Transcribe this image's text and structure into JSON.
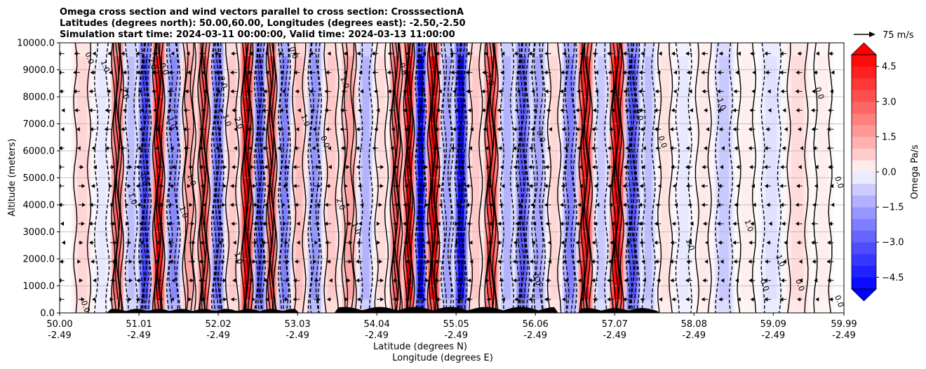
{
  "chart_data": {
    "type": "heatmap",
    "title_lines": [
      "Omega cross section and wind vectors parallel to cross section: CrosssectionA",
      "Latitudes (degrees north): 50.00,60.00, Longitudes (degrees east): -2.50,-2.50",
      "Simulation start time: 2024-03-11 00:00:00, Valid time: 2024-03-13 11:00:00"
    ],
    "ylabel": "Altitude (meters)",
    "xlabel_lines": [
      "Latitude (degrees N)",
      "Longitude (degrees E)"
    ],
    "ylim": [
      0,
      10000
    ],
    "xlim": [
      50.0,
      59.99
    ],
    "yticks": [
      "0.0",
      "1000.0",
      "2000.0",
      "3000.0",
      "4000.0",
      "5000.0",
      "6000.0",
      "7000.0",
      "8000.0",
      "9000.0",
      "10000.0"
    ],
    "xticks": [
      {
        "lat": "50.00",
        "lon": "-2.49"
      },
      {
        "lat": "51.01",
        "lon": "-2.49"
      },
      {
        "lat": "52.02",
        "lon": "-2.49"
      },
      {
        "lat": "53.03",
        "lon": "-2.49"
      },
      {
        "lat": "54.04",
        "lon": "-2.49"
      },
      {
        "lat": "55.05",
        "lon": "-2.49"
      },
      {
        "lat": "56.06",
        "lon": "-2.49"
      },
      {
        "lat": "57.07",
        "lon": "-2.49"
      },
      {
        "lat": "58.08",
        "lon": "-2.49"
      },
      {
        "lat": "59.09",
        "lon": "-2.49"
      },
      {
        "lat": "59.99",
        "lon": "-2.49"
      }
    ],
    "grid": "horizontal",
    "colorbar": {
      "label": "Omega Pa/s",
      "range": [
        -5.0,
        5.0
      ],
      "ticks": [
        "4.5",
        "3.0",
        "1.5",
        "0.0",
        "−1.5",
        "−3.0",
        "−4.5"
      ],
      "tick_values": [
        4.5,
        3.0,
        1.5,
        0.0,
        -1.5,
        -3.0,
        -4.5
      ],
      "extend": "both",
      "levels": 20,
      "negative_color": "#0000ff",
      "positive_color": "#ff0000"
    },
    "quiver_key": {
      "label": "75 m/s"
    },
    "bands": [
      {
        "lat": 50.3,
        "value": 0.6
      },
      {
        "lat": 50.55,
        "value": -0.3
      },
      {
        "lat": 50.75,
        "value": 2.8
      },
      {
        "lat": 50.9,
        "value": -1.0
      },
      {
        "lat": 51.1,
        "value": -3.5
      },
      {
        "lat": 51.25,
        "value": 4.5
      },
      {
        "lat": 51.45,
        "value": -2.0
      },
      {
        "lat": 51.65,
        "value": 1.5
      },
      {
        "lat": 51.85,
        "value": 3.2
      },
      {
        "lat": 52.0,
        "value": -2.8
      },
      {
        "lat": 52.2,
        "value": 0.8
      },
      {
        "lat": 52.4,
        "value": 4.8
      },
      {
        "lat": 52.55,
        "value": -3.2
      },
      {
        "lat": 52.7,
        "value": 3.5
      },
      {
        "lat": 52.85,
        "value": -2.2
      },
      {
        "lat": 53.05,
        "value": 1.0
      },
      {
        "lat": 53.25,
        "value": -1.8
      },
      {
        "lat": 53.45,
        "value": 0.8
      },
      {
        "lat": 53.7,
        "value": 1.5
      },
      {
        "lat": 53.9,
        "value": -1.2
      },
      {
        "lat": 54.1,
        "value": 0.5
      },
      {
        "lat": 54.3,
        "value": 3.0
      },
      {
        "lat": 54.45,
        "value": 5.0
      },
      {
        "lat": 54.6,
        "value": -5.0
      },
      {
        "lat": 54.75,
        "value": 5.0
      },
      {
        "lat": 54.95,
        "value": -1.5
      },
      {
        "lat": 55.1,
        "value": -4.8
      },
      {
        "lat": 55.3,
        "value": 0.8
      },
      {
        "lat": 55.5,
        "value": 3.5
      },
      {
        "lat": 55.7,
        "value": -1.2
      },
      {
        "lat": 55.9,
        "value": -3.0
      },
      {
        "lat": 56.1,
        "value": -1.5
      },
      {
        "lat": 56.3,
        "value": 0.6
      },
      {
        "lat": 56.5,
        "value": -2.2
      },
      {
        "lat": 56.7,
        "value": 4.2
      },
      {
        "lat": 56.9,
        "value": -0.8
      },
      {
        "lat": 57.1,
        "value": 4.8
      },
      {
        "lat": 57.3,
        "value": -3.2
      },
      {
        "lat": 57.5,
        "value": -1.0
      },
      {
        "lat": 57.7,
        "value": 0.4
      },
      {
        "lat": 57.95,
        "value": -0.3
      },
      {
        "lat": 58.2,
        "value": 0.3
      },
      {
        "lat": 58.45,
        "value": -0.8
      },
      {
        "lat": 58.75,
        "value": 0.2
      },
      {
        "lat": 59.05,
        "value": -0.4
      },
      {
        "lat": 59.4,
        "value": 0.5
      },
      {
        "lat": 59.75,
        "value": 0.2
      }
    ],
    "contour_labels": [
      {
        "text": "0.0",
        "lat": 50.35,
        "alt": 9400
      },
      {
        "text": "1.0",
        "lat": 50.55,
        "alt": 9100
      },
      {
        "text": "2.0",
        "lat": 50.8,
        "alt": 8100
      },
      {
        "text": "2.0",
        "lat": 51.15,
        "alt": 9200
      },
      {
        "text": "0.0",
        "lat": 51.3,
        "alt": 9000
      },
      {
        "text": "1.0",
        "lat": 51.4,
        "alt": 7000
      },
      {
        "text": "1.0",
        "lat": 50.9,
        "alt": 4200
      },
      {
        "text": "0.0",
        "lat": 51.05,
        "alt": 4900
      },
      {
        "text": "1.0",
        "lat": 51.55,
        "alt": 3700
      },
      {
        "text": "1.0",
        "lat": 51.65,
        "alt": 4900
      },
      {
        "text": "2.0",
        "lat": 52.05,
        "alt": 8500
      },
      {
        "text": "1.0",
        "lat": 52.1,
        "alt": 7100
      },
      {
        "text": "2.0",
        "lat": 52.25,
        "alt": 7000
      },
      {
        "text": "1.0",
        "lat": 52.25,
        "alt": 2000
      },
      {
        "text": "0.0",
        "lat": 52.95,
        "alt": 9600
      },
      {
        "text": "1.0",
        "lat": 53.1,
        "alt": 7100
      },
      {
        "text": "0.0",
        "lat": 53.35,
        "alt": 6300
      },
      {
        "text": "2.0",
        "lat": 53.55,
        "alt": 4000
      },
      {
        "text": "1.0",
        "lat": 53.75,
        "alt": 3100
      },
      {
        "text": "1.0",
        "lat": 53.6,
        "alt": 8500
      },
      {
        "text": "0.0",
        "lat": 54.35,
        "alt": 9000
      },
      {
        "text": "2.0",
        "lat": 55.45,
        "alt": 8600
      },
      {
        "text": "0.0",
        "lat": 56.1,
        "alt": 6500
      },
      {
        "text": "0.0",
        "lat": 56.05,
        "alt": 1200
      },
      {
        "text": "0.0",
        "lat": 57.35,
        "alt": 7300
      },
      {
        "text": "0.0",
        "lat": 57.65,
        "alt": 6300
      },
      {
        "text": "1.0",
        "lat": 58.4,
        "alt": 7700
      },
      {
        "text": "1.0",
        "lat": 58.0,
        "alt": 2500
      },
      {
        "text": "1.0",
        "lat": 58.75,
        "alt": 3200
      },
      {
        "text": "0.0",
        "lat": 59.65,
        "alt": 8100
      },
      {
        "text": "1.0",
        "lat": 59.15,
        "alt": 1900
      },
      {
        "text": "0.0",
        "lat": 58.95,
        "alt": 1000
      },
      {
        "text": "0.0",
        "lat": 59.4,
        "alt": 1000
      },
      {
        "text": "0.0",
        "lat": 59.9,
        "alt": 4800
      },
      {
        "text": "0.0",
        "lat": 59.9,
        "alt": 400
      },
      {
        "text": "0.0",
        "lat": 50.3,
        "alt": 200
      }
    ]
  }
}
